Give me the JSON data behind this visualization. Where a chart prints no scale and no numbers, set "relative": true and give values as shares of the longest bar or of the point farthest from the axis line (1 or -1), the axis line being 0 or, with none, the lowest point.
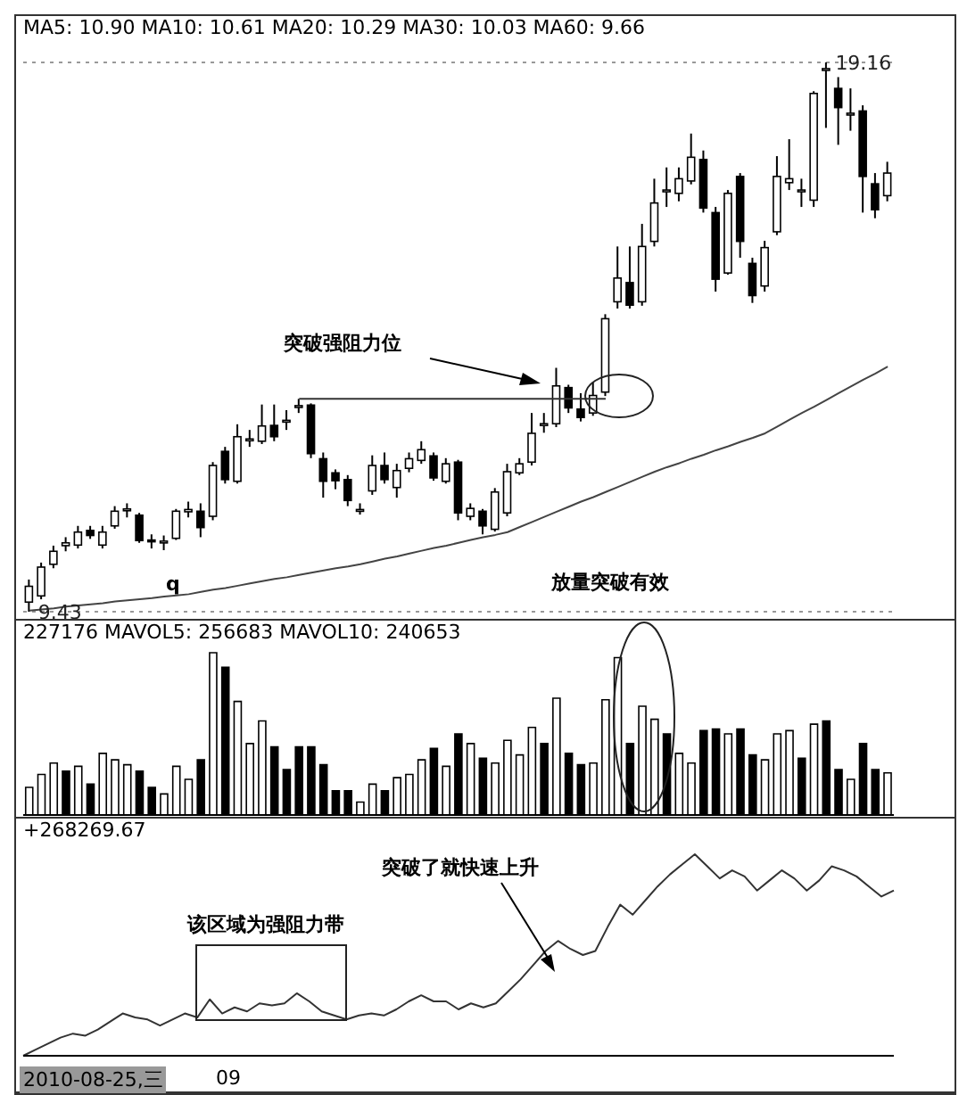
{
  "chart_data": [
    {
      "type": "candlestick",
      "title": "MA5: 10.90 MA10: 10.61 MA20: 10.29 MA30: 10.03 MA60: 9.66",
      "tick_labels": false,
      "grid": "y",
      "categories": [
        null,
        null,
        null,
        null,
        null,
        null,
        null,
        null,
        null,
        null,
        null,
        null,
        null,
        null,
        null,
        null,
        null,
        null,
        null,
        null,
        null,
        null,
        null,
        null,
        null,
        null,
        null,
        null,
        null,
        null,
        null,
        null,
        null,
        null,
        null,
        null,
        null,
        null,
        null,
        null,
        null,
        null,
        null,
        null,
        null,
        null,
        null,
        null,
        null,
        null,
        null,
        null,
        null,
        null,
        null,
        null,
        null,
        null,
        null,
        null,
        null,
        null,
        null,
        null,
        null,
        null,
        null,
        null,
        null,
        null,
        null
      ],
      "ohlc": [
        [
          9.6,
          10.0,
          9.43,
          9.88
        ],
        [
          9.71,
          10.3,
          9.65,
          10.22
        ],
        [
          10.27,
          10.6,
          10.2,
          10.5
        ],
        [
          10.6,
          10.75,
          10.5,
          10.65
        ],
        [
          10.61,
          10.95,
          10.55,
          10.84
        ],
        [
          10.87,
          10.95,
          10.72,
          10.78
        ],
        [
          10.61,
          10.95,
          10.55,
          10.84
        ],
        [
          10.95,
          11.3,
          10.9,
          11.21
        ],
        [
          11.22,
          11.35,
          11.1,
          11.25
        ],
        [
          11.14,
          11.18,
          10.65,
          10.69
        ],
        [
          10.7,
          10.8,
          10.55,
          10.68
        ],
        [
          10.66,
          10.78,
          10.52,
          10.68
        ],
        [
          10.73,
          11.25,
          10.7,
          11.21
        ],
        [
          11.2,
          11.38,
          11.1,
          11.24
        ],
        [
          11.21,
          11.35,
          10.75,
          10.92
        ],
        [
          11.12,
          12.08,
          11.05,
          12.02
        ],
        [
          12.27,
          12.35,
          11.7,
          11.77
        ],
        [
          11.74,
          12.75,
          11.7,
          12.53
        ],
        [
          12.47,
          12.65,
          12.35,
          12.49
        ],
        [
          12.45,
          13.1,
          12.4,
          12.72
        ],
        [
          12.73,
          13.1,
          12.45,
          12.53
        ],
        [
          12.8,
          13.0,
          12.65,
          12.82
        ],
        [
          13.05,
          13.2,
          12.95,
          13.08
        ],
        [
          13.09,
          13.12,
          12.15,
          12.23
        ],
        [
          12.14,
          12.25,
          11.45,
          11.74
        ],
        [
          11.89,
          11.95,
          11.6,
          11.75
        ],
        [
          11.77,
          11.85,
          11.3,
          11.4
        ],
        [
          11.22,
          11.35,
          11.15,
          11.24
        ],
        [
          11.57,
          12.2,
          11.5,
          12.02
        ],
        [
          12.02,
          12.25,
          11.7,
          11.77
        ],
        [
          11.63,
          12.05,
          11.45,
          11.93
        ],
        [
          11.97,
          12.25,
          11.9,
          12.14
        ],
        [
          12.11,
          12.45,
          12.05,
          12.3
        ],
        [
          12.19,
          12.25,
          11.75,
          11.8
        ],
        [
          11.74,
          12.15,
          11.7,
          12.05
        ],
        [
          12.08,
          12.12,
          11.05,
          11.18
        ],
        [
          11.12,
          11.35,
          11.05,
          11.26
        ],
        [
          11.21,
          11.25,
          10.8,
          10.95
        ],
        [
          10.89,
          11.62,
          10.85,
          11.55
        ],
        [
          11.18,
          12.05,
          11.12,
          11.91
        ],
        [
          11.89,
          12.15,
          11.85,
          12.05
        ],
        [
          12.08,
          12.95,
          12.02,
          12.59
        ],
        [
          12.74,
          12.95,
          12.6,
          12.76
        ],
        [
          12.76,
          13.75,
          12.7,
          13.43
        ],
        [
          13.4,
          13.45,
          12.95,
          13.04
        ],
        [
          13.02,
          13.3,
          12.8,
          12.87
        ],
        [
          12.95,
          13.5,
          12.9,
          13.26
        ],
        [
          13.32,
          14.7,
          13.25,
          14.62
        ],
        [
          14.92,
          15.9,
          14.8,
          15.34
        ],
        [
          15.26,
          15.9,
          14.8,
          14.86
        ],
        [
          14.92,
          16.3,
          14.85,
          15.9
        ],
        [
          15.99,
          17.1,
          15.9,
          16.67
        ],
        [
          16.88,
          17.3,
          16.6,
          16.9
        ],
        [
          16.84,
          17.3,
          16.7,
          17.1
        ],
        [
          17.06,
          17.9,
          17.0,
          17.48
        ],
        [
          17.44,
          17.6,
          16.5,
          16.58
        ],
        [
          16.5,
          16.6,
          15.1,
          15.32
        ],
        [
          15.43,
          16.9,
          15.4,
          16.84
        ],
        [
          17.14,
          17.2,
          15.7,
          15.99
        ],
        [
          15.6,
          15.7,
          14.9,
          15.03
        ],
        [
          15.2,
          16.0,
          15.1,
          15.88
        ],
        [
          16.16,
          17.5,
          16.1,
          17.14
        ],
        [
          17.03,
          17.8,
          16.9,
          17.1
        ],
        [
          16.88,
          17.1,
          16.6,
          16.9
        ],
        [
          16.72,
          18.65,
          16.6,
          18.61
        ],
        [
          19.03,
          19.16,
          18.0,
          19.05
        ],
        [
          18.7,
          18.9,
          17.7,
          18.36
        ],
        [
          18.24,
          18.7,
          17.95,
          18.26
        ],
        [
          18.3,
          18.4,
          16.5,
          17.14
        ],
        [
          17.01,
          17.2,
          16.4,
          16.55
        ],
        [
          16.8,
          17.4,
          16.7,
          17.2
        ]
      ],
      "series": [
        {
          "type": "line",
          "color": "#444444",
          "values": [
            9.45,
            9.47,
            9.49,
            9.52,
            9.54,
            9.56,
            9.58,
            9.61,
            9.63,
            9.65,
            9.67,
            9.7,
            9.72,
            9.74,
            9.78,
            9.82,
            9.85,
            9.89,
            9.93,
            9.97,
            10.01,
            10.04,
            10.08,
            10.12,
            10.16,
            10.2,
            10.23,
            10.27,
            10.32,
            10.37,
            10.41,
            10.46,
            10.51,
            10.56,
            10.6,
            10.65,
            10.7,
            10.75,
            10.79,
            10.84,
            10.93,
            11.02,
            11.11,
            11.2,
            11.29,
            11.38,
            11.46,
            11.55,
            11.64,
            11.73,
            11.82,
            11.91,
            11.99,
            12.06,
            12.14,
            12.21,
            12.29,
            12.36,
            12.44,
            12.51,
            12.59,
            12.71,
            12.83,
            12.95,
            13.06,
            13.18,
            13.3,
            13.42,
            13.54,
            13.65,
            13.77
          ]
        }
      ],
      "ref_lines": [
        {
          "axis": "y",
          "value": 13.2,
          "color": "#333333"
        }
      ],
      "annotations": [
        "突破强阻力位",
        "放量突破有效",
        "q",
        "19.16",
        "9.43"
      ]
    },
    {
      "type": "bar",
      "title": "227176 MAVOL5: 256683 MAVOL10: 240653",
      "relative": true,
      "tick_labels": false,
      "categories": [
        null,
        null,
        null,
        null,
        null,
        null,
        null,
        null,
        null,
        null,
        null,
        null,
        null,
        null,
        null,
        null,
        null,
        null,
        null,
        null,
        null,
        null,
        null,
        null,
        null,
        null,
        null,
        null,
        null,
        null,
        null,
        null,
        null,
        null,
        null,
        null,
        null,
        null,
        null,
        null,
        null,
        null,
        null,
        null,
        null,
        null,
        null,
        null,
        null,
        null,
        null,
        null,
        null,
        null,
        null,
        null,
        null,
        null,
        null,
        null,
        null,
        null,
        null,
        null,
        null,
        null,
        null,
        null,
        null,
        null,
        null
      ],
      "values": [
        0.17,
        0.25,
        0.32,
        0.27,
        0.3,
        0.19,
        0.38,
        0.34,
        0.31,
        0.27,
        0.17,
        0.13,
        0.3,
        0.22,
        0.34,
        1,
        0.91,
        0.7,
        0.44,
        0.58,
        0.42,
        0.28,
        0.42,
        0.42,
        0.31,
        0.15,
        0.15,
        0.08,
        0.19,
        0.15,
        0.23,
        0.25,
        0.34,
        0.41,
        0.3,
        0.5,
        0.44,
        0.35,
        0.32,
        0.46,
        0.37,
        0.54,
        0.44,
        0.72,
        0.38,
        0.31,
        0.32,
        0.71,
        0.97,
        0.44,
        0.67,
        0.59,
        0.5,
        0.38,
        0.32,
        0.52,
        0.53,
        0.5,
        0.53,
        0.37,
        0.34,
        0.5,
        0.52,
        0.35,
        0.56,
        0.58,
        0.28,
        0.22,
        0.44,
        0.28,
        0.26
      ],
      "colors": [
        "#ffffff",
        "#ffffff",
        "#ffffff",
        "#000000",
        "#ffffff",
        "#000000",
        "#ffffff",
        "#ffffff",
        "#ffffff",
        "#000000",
        "#000000",
        "#ffffff",
        "#ffffff",
        "#ffffff",
        "#000000",
        "#ffffff",
        "#000000",
        "#ffffff",
        "#ffffff",
        "#ffffff",
        "#000000",
        "#000000",
        "#000000",
        "#000000",
        "#000000",
        "#000000",
        "#000000",
        "#ffffff",
        "#ffffff",
        "#000000",
        "#ffffff",
        "#ffffff",
        "#ffffff",
        "#000000",
        "#ffffff",
        "#000000",
        "#ffffff",
        "#000000",
        "#ffffff",
        "#ffffff",
        "#ffffff",
        "#ffffff",
        "#000000",
        "#ffffff",
        "#000000",
        "#000000",
        "#ffffff",
        "#ffffff",
        "#ffffff",
        "#000000",
        "#ffffff",
        "#ffffff",
        "#000000",
        "#ffffff",
        "#ffffff",
        "#000000",
        "#000000",
        "#ffffff",
        "#000000",
        "#000000",
        "#ffffff",
        "#ffffff",
        "#ffffff",
        "#000000",
        "#ffffff",
        "#000000",
        "#000000",
        "#ffffff",
        "#000000",
        "#000000",
        "#ffffff"
      ]
    },
    {
      "type": "line",
      "title": "+268269.67",
      "relative": true,
      "tick_labels": false,
      "categories": [
        null,
        null,
        null,
        null,
        null,
        null,
        null,
        null,
        null,
        null,
        null,
        null,
        null,
        null,
        null,
        null,
        null,
        null,
        null,
        null,
        null,
        null,
        null,
        null,
        null,
        null,
        null,
        null,
        null,
        null,
        null,
        null,
        null,
        null,
        null,
        null,
        null,
        null,
        null,
        null,
        null,
        null,
        null,
        null,
        null,
        null,
        null,
        null,
        null,
        null,
        null,
        null,
        null,
        null,
        null,
        null,
        null,
        null,
        null,
        null,
        null,
        null,
        null,
        null,
        null,
        null,
        null,
        null,
        null,
        null,
        null
      ],
      "series": [
        {
          "color": "#333333",
          "values": [
            0,
            0.03,
            0.06,
            0.09,
            0.11,
            0.1,
            0.13,
            0.17,
            0.21,
            0.19,
            0.18,
            0.15,
            0.18,
            0.21,
            0.19,
            0.28,
            0.21,
            0.24,
            0.22,
            0.26,
            0.25,
            0.26,
            0.31,
            0.27,
            0.22,
            0.2,
            0.18,
            0.2,
            0.21,
            0.2,
            0.23,
            0.27,
            0.3,
            0.27,
            0.27,
            0.23,
            0.26,
            0.24,
            0.26,
            0.32,
            0.38,
            0.45,
            0.52,
            0.57,
            0.53,
            0.5,
            0.52,
            0.64,
            0.75,
            0.7,
            0.77,
            0.84,
            0.9,
            0.95,
            1,
            0.94,
            0.88,
            0.92,
            0.89,
            0.82,
            0.87,
            0.92,
            0.88,
            0.82,
            0.87,
            0.94,
            0.92,
            0.89,
            0.84,
            0.79,
            0.82
          ]
        }
      ],
      "annotations": [
        "突破了就快速上升",
        "该区域为强阻力带",
        "2010-08-25,三",
        "09"
      ]
    }
  ]
}
